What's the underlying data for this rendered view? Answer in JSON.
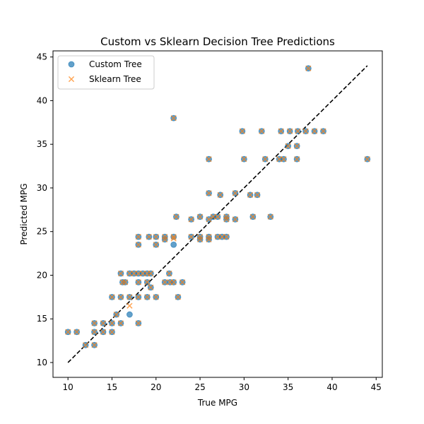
{
  "chart_data": {
    "type": "scatter",
    "title": "Custom vs Sklearn Decision Tree Predictions",
    "xlabel": "True MPG",
    "ylabel": "Predicted MPG",
    "xlim": [
      8.3,
      45.7
    ],
    "ylim": [
      8.3,
      45.7
    ],
    "x_ticks": [
      10,
      15,
      20,
      25,
      30,
      35,
      40,
      45
    ],
    "y_ticks": [
      10,
      15,
      20,
      25,
      30,
      35,
      40,
      45
    ],
    "grid": false,
    "legend_position": "top-left",
    "reference_line": {
      "style": "dashed",
      "color": "#000000",
      "from": [
        10,
        10
      ],
      "to": [
        44,
        44
      ]
    },
    "series": [
      {
        "name": "Custom Tree",
        "marker": "circle",
        "color": "#1f77b4",
        "points": [
          [
            10,
            13.5
          ],
          [
            11,
            13.5
          ],
          [
            12,
            12
          ],
          [
            13,
            12
          ],
          [
            13,
            13.5
          ],
          [
            13,
            14.5
          ],
          [
            14,
            13.5
          ],
          [
            14,
            14.5
          ],
          [
            15,
            13.5
          ],
          [
            15,
            14.5
          ],
          [
            15,
            17.5
          ],
          [
            15.5,
            15.5
          ],
          [
            16,
            14.5
          ],
          [
            16,
            17.5
          ],
          [
            16,
            20.2
          ],
          [
            16.2,
            19.2
          ],
          [
            16.5,
            19.2
          ],
          [
            17,
            17.5
          ],
          [
            17,
            15.5
          ],
          [
            17,
            20.2
          ],
          [
            17.5,
            20.2
          ],
          [
            18,
            14.5
          ],
          [
            18,
            17.5
          ],
          [
            18,
            20.2
          ],
          [
            18,
            19.2
          ],
          [
            18,
            23.5
          ],
          [
            18,
            24.4
          ],
          [
            18.5,
            20.2
          ],
          [
            19,
            17.5
          ],
          [
            19,
            19.2
          ],
          [
            19,
            20.2
          ],
          [
            19.2,
            24.4
          ],
          [
            19.4,
            18.6
          ],
          [
            19.4,
            20.2
          ],
          [
            20,
            17.5
          ],
          [
            20,
            23.5
          ],
          [
            20,
            24.4
          ],
          [
            21,
            24.4
          ],
          [
            21,
            19.2
          ],
          [
            21,
            24.1
          ],
          [
            21.5,
            20.2
          ],
          [
            21.6,
            19.2
          ],
          [
            22,
            19.2
          ],
          [
            22,
            23.5
          ],
          [
            22,
            24.4
          ],
          [
            22,
            38
          ],
          [
            22.3,
            26.7
          ],
          [
            22.5,
            17.5
          ],
          [
            23,
            19.2
          ],
          [
            24,
            26.4
          ],
          [
            24,
            24.4
          ],
          [
            25,
            24.4
          ],
          [
            25,
            26.7
          ],
          [
            25,
            24.1
          ],
          [
            26,
            24.4
          ],
          [
            26,
            24.1
          ],
          [
            26,
            26.4
          ],
          [
            26,
            29.4
          ],
          [
            26,
            33.3
          ],
          [
            26.5,
            26.7
          ],
          [
            27,
            24.4
          ],
          [
            27,
            26.7
          ],
          [
            27.3,
            29.2
          ],
          [
            27.5,
            24.4
          ],
          [
            28,
            24.4
          ],
          [
            28,
            26.4
          ],
          [
            28,
            26.7
          ],
          [
            29,
            26.4
          ],
          [
            29,
            29.4
          ],
          [
            29.8,
            36.5
          ],
          [
            30,
            33.3
          ],
          [
            30.7,
            29.2
          ],
          [
            31,
            26.7
          ],
          [
            31.5,
            29.2
          ],
          [
            32,
            36.5
          ],
          [
            32.4,
            33.3
          ],
          [
            33,
            26.7
          ],
          [
            34,
            33.3
          ],
          [
            34.2,
            36.5
          ],
          [
            34.5,
            33.3
          ],
          [
            35,
            34.8
          ],
          [
            35.2,
            36.5
          ],
          [
            36,
            33.3
          ],
          [
            36,
            34.8
          ],
          [
            36.1,
            36.5
          ],
          [
            37,
            36.5
          ],
          [
            37.3,
            43.7
          ],
          [
            38,
            36.5
          ],
          [
            39,
            36.5
          ],
          [
            44,
            33.3
          ]
        ]
      },
      {
        "name": "Sklearn Tree",
        "marker": "x",
        "color": "#ff7f0e",
        "points": [
          [
            10,
            13.5
          ],
          [
            11,
            13.5
          ],
          [
            12,
            12
          ],
          [
            13,
            12
          ],
          [
            13,
            13.5
          ],
          [
            13,
            14.5
          ],
          [
            14,
            13.5
          ],
          [
            14,
            14.5
          ],
          [
            15,
            13.5
          ],
          [
            15,
            14.5
          ],
          [
            15,
            17.5
          ],
          [
            15.5,
            15.5
          ],
          [
            16,
            14.5
          ],
          [
            16,
            17.5
          ],
          [
            16,
            20.2
          ],
          [
            16.2,
            19.2
          ],
          [
            16.5,
            19.2
          ],
          [
            17,
            17.5
          ],
          [
            17,
            16.5
          ],
          [
            17,
            20.2
          ],
          [
            17.5,
            20.2
          ],
          [
            18,
            14.5
          ],
          [
            18,
            17.5
          ],
          [
            18,
            20.2
          ],
          [
            18,
            19.2
          ],
          [
            18,
            23.5
          ],
          [
            18,
            24.4
          ],
          [
            18.5,
            20.2
          ],
          [
            19,
            17.5
          ],
          [
            19,
            19.2
          ],
          [
            19,
            20.2
          ],
          [
            19.2,
            24.4
          ],
          [
            19.4,
            18.6
          ],
          [
            19.4,
            20.2
          ],
          [
            20,
            17.5
          ],
          [
            20,
            23.5
          ],
          [
            20,
            24.4
          ],
          [
            21,
            24.4
          ],
          [
            21,
            19.2
          ],
          [
            21,
            24.1
          ],
          [
            21.5,
            20.2
          ],
          [
            21.6,
            19.2
          ],
          [
            22,
            19.2
          ],
          [
            22,
            24.2
          ],
          [
            22,
            24.4
          ],
          [
            22,
            38
          ],
          [
            22.3,
            26.7
          ],
          [
            22.5,
            17.5
          ],
          [
            23,
            19.2
          ],
          [
            24,
            26.4
          ],
          [
            24,
            24.4
          ],
          [
            25,
            24.4
          ],
          [
            25,
            26.7
          ],
          [
            25,
            24.1
          ],
          [
            26,
            24.4
          ],
          [
            26,
            24.1
          ],
          [
            26,
            26.4
          ],
          [
            26,
            29.4
          ],
          [
            26,
            33.3
          ],
          [
            26.5,
            26.7
          ],
          [
            27,
            24.4
          ],
          [
            27,
            26.7
          ],
          [
            27.3,
            29.2
          ],
          [
            27.5,
            24.4
          ],
          [
            28,
            24.4
          ],
          [
            28,
            26.4
          ],
          [
            28,
            26.7
          ],
          [
            29,
            26.4
          ],
          [
            29,
            29.4
          ],
          [
            29.8,
            36.5
          ],
          [
            30,
            33.3
          ],
          [
            30.7,
            29.2
          ],
          [
            31,
            26.7
          ],
          [
            31.5,
            29.2
          ],
          [
            32,
            36.5
          ],
          [
            32.4,
            33.3
          ],
          [
            33,
            26.7
          ],
          [
            34,
            33.3
          ],
          [
            34.2,
            36.5
          ],
          [
            34.5,
            33.3
          ],
          [
            35,
            34.8
          ],
          [
            35.2,
            36.5
          ],
          [
            36,
            33.3
          ],
          [
            36,
            34.8
          ],
          [
            36.1,
            36.5
          ],
          [
            37,
            36.5
          ],
          [
            37.3,
            43.7
          ],
          [
            38,
            36.5
          ],
          [
            39,
            36.5
          ],
          [
            44,
            33.3
          ]
        ]
      }
    ]
  }
}
